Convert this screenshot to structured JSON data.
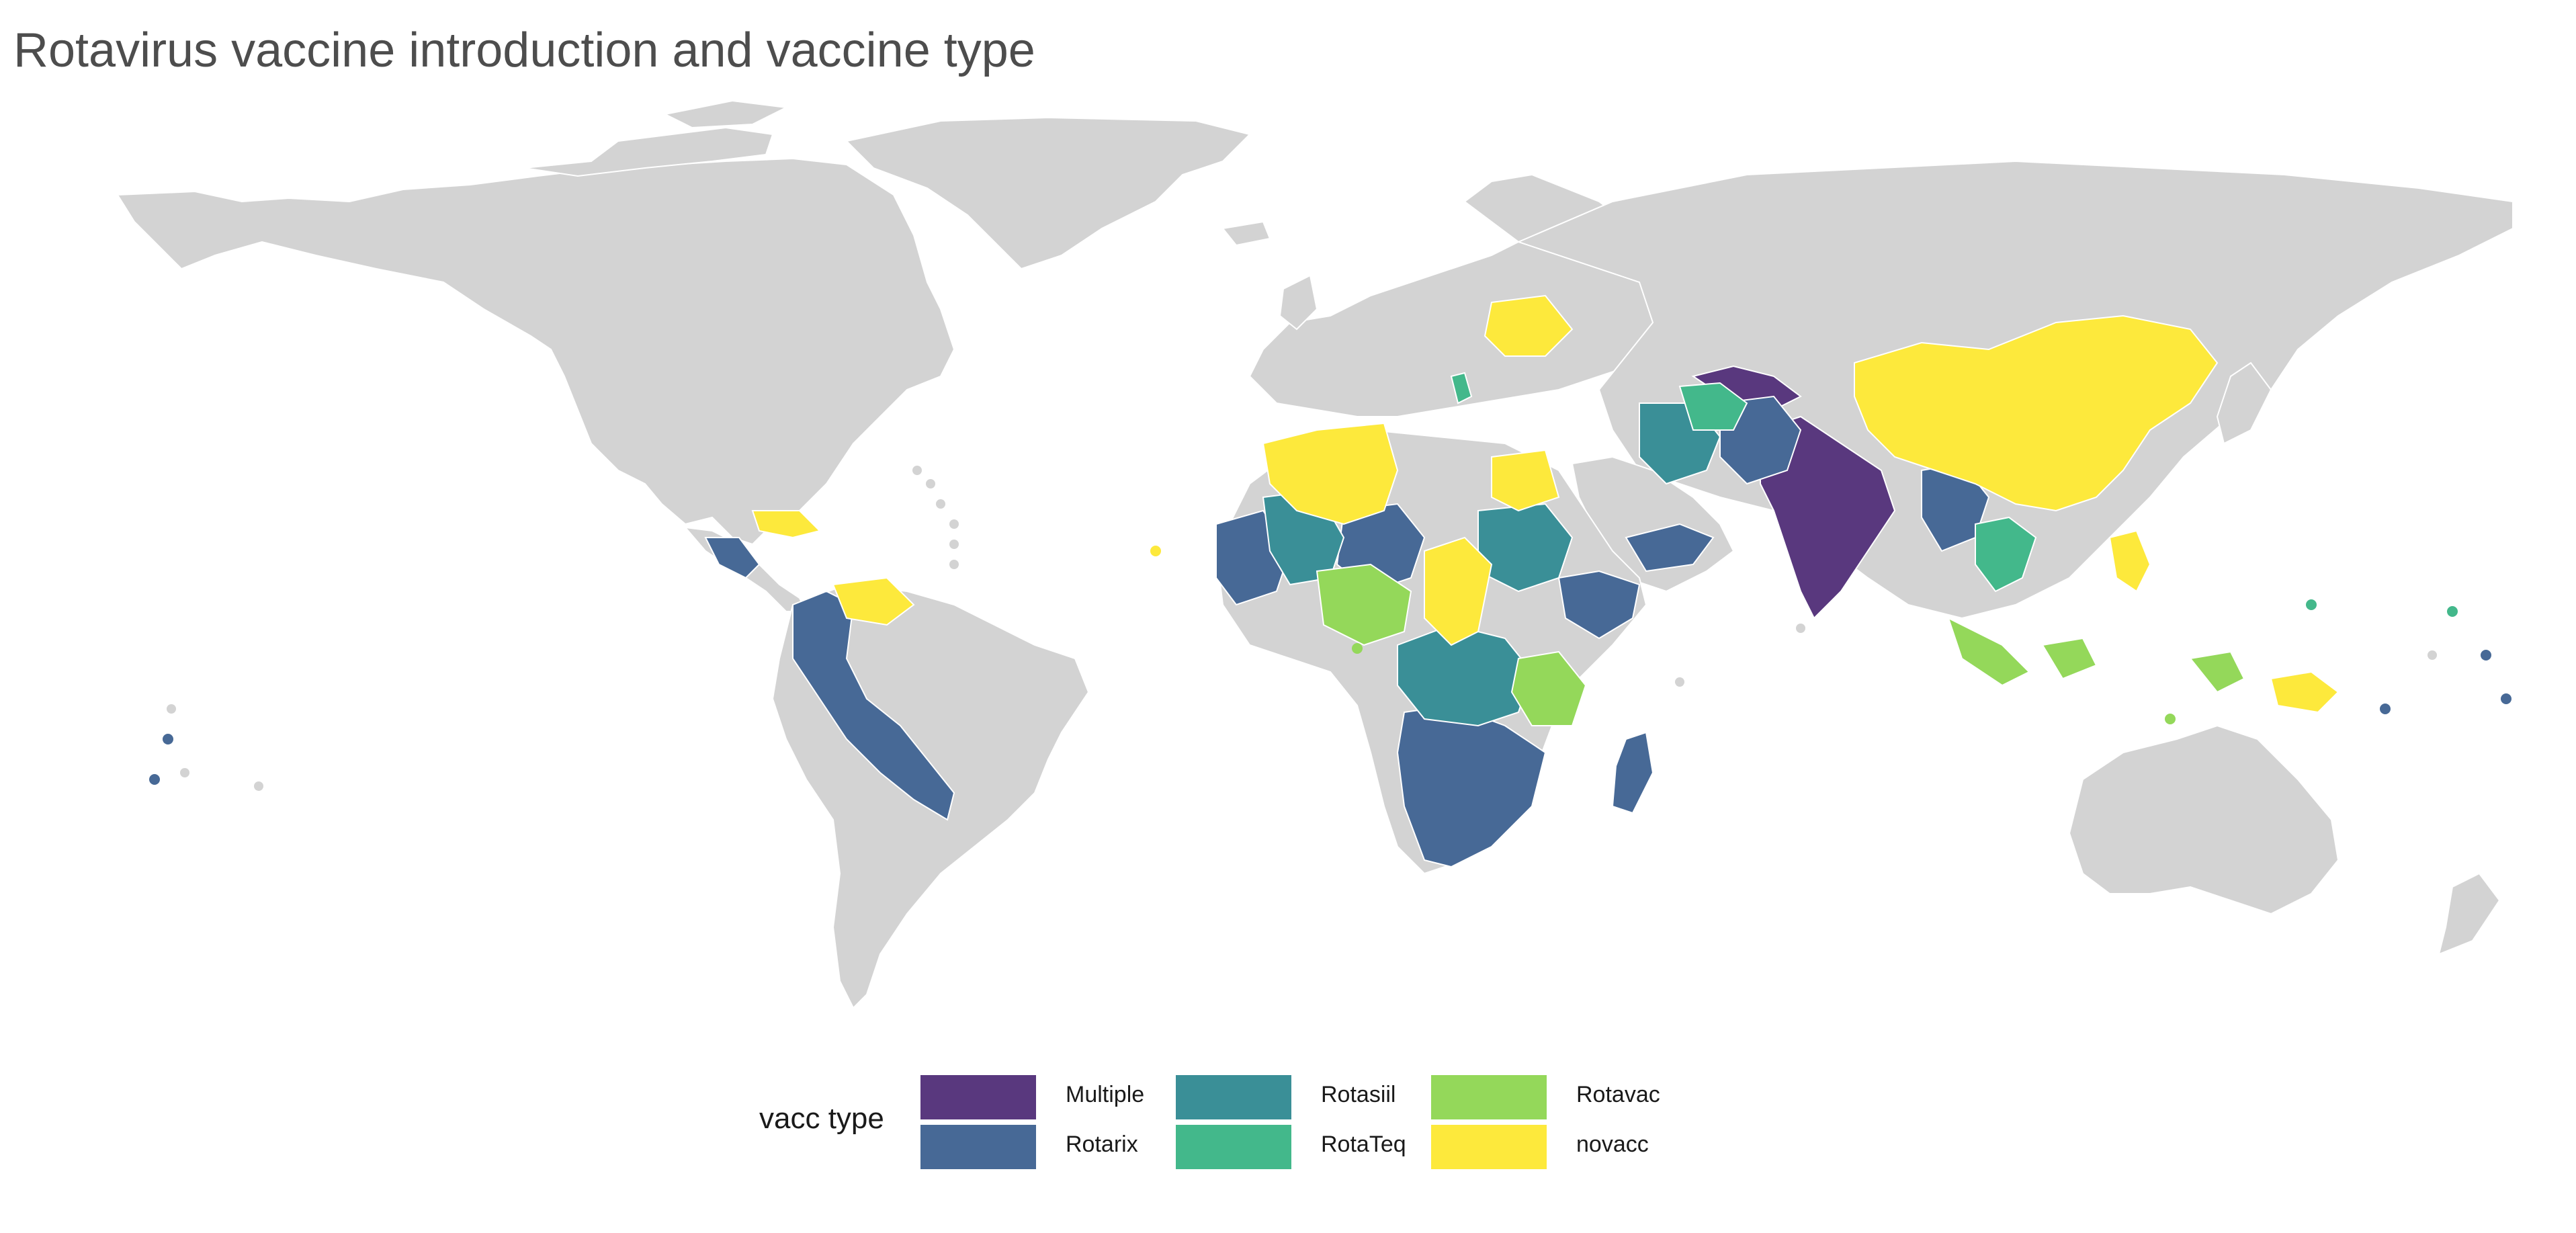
{
  "title": "Rotavirus vaccine introduction and vaccine type",
  "map": {
    "projection": "equirectangular-world",
    "base_color": "#d3d3d3",
    "background": "#ffffff"
  },
  "legend": {
    "title": "vacc type",
    "placement": "bottom-center",
    "items": [
      {
        "key": "multiple",
        "label": "Multiple",
        "color": "#59387e"
      },
      {
        "key": "rotarix",
        "label": "Rotarix",
        "color": "#476996"
      },
      {
        "key": "rotasiil",
        "label": "Rotasiil",
        "color": "#3a8f97"
      },
      {
        "key": "rotateq",
        "label": "RotaTeq",
        "color": "#43b88b"
      },
      {
        "key": "rotavac",
        "label": "Rotavac",
        "color": "#94d85a"
      },
      {
        "key": "novacc",
        "label": "novacc",
        "color": "#fde93c"
      }
    ]
  }
}
